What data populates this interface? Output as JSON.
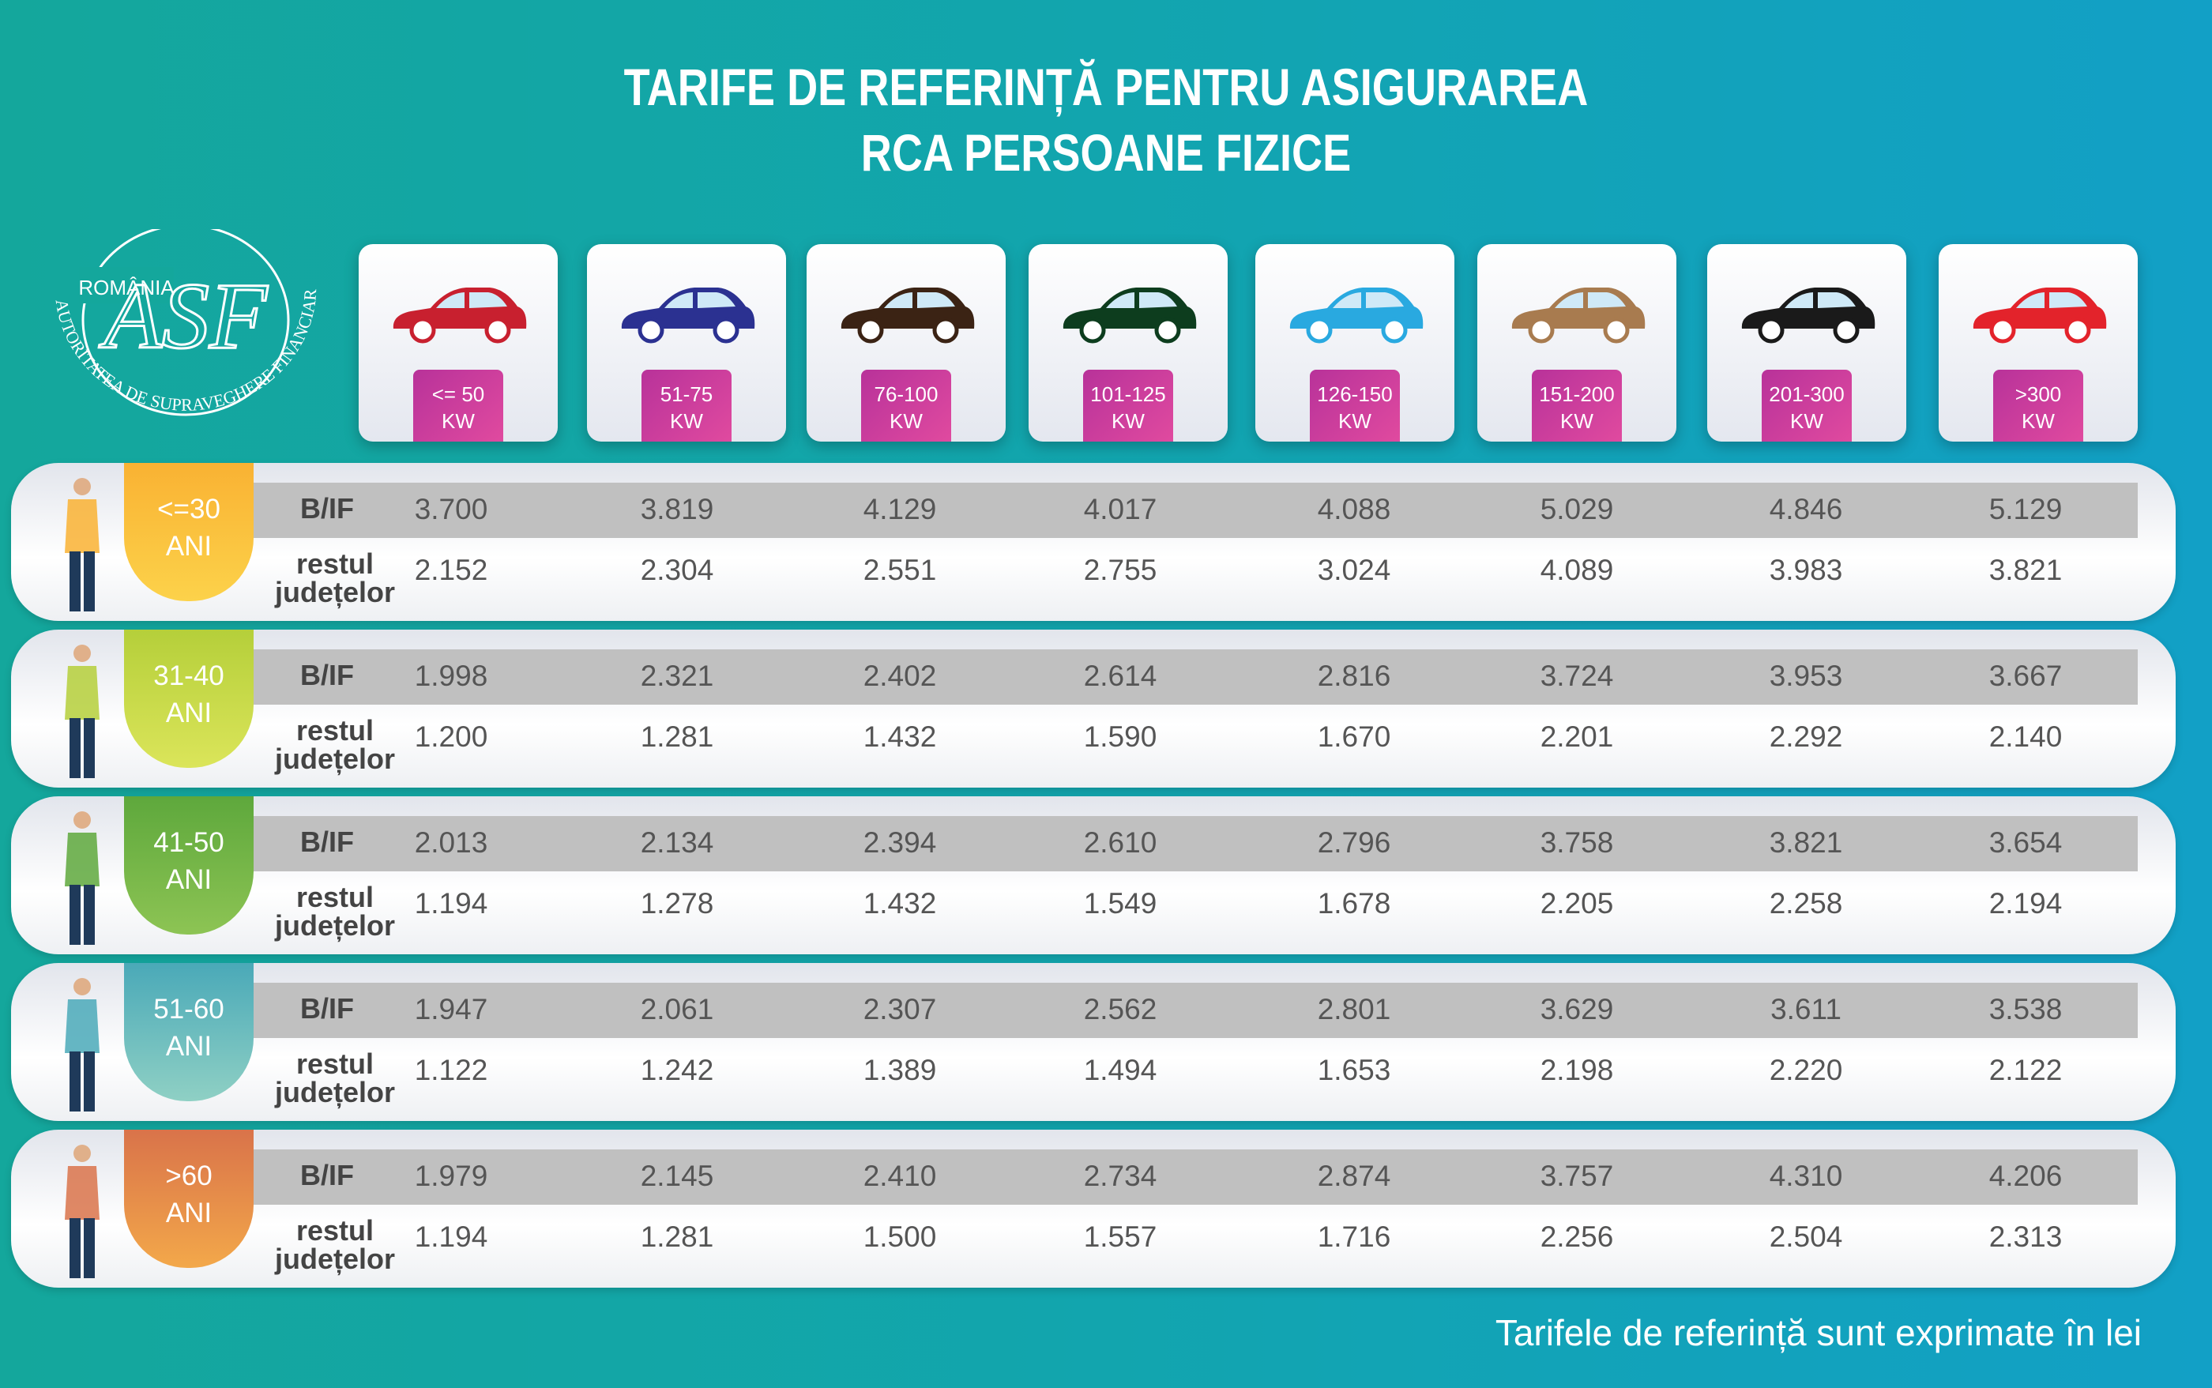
{
  "title": {
    "line1": "TARIFE DE REFERINȚĂ PENTRU ASIGURAREA",
    "line2": "RCA PERSOANE FIZICE"
  },
  "logo": {
    "text_top": "ROMÂNIA",
    "text_arc": "AUTORITATEA DE SUPRAVEGHERE FINANCIARĂ",
    "monogram": "ASF"
  },
  "columns": [
    {
      "range": "<= 50",
      "unit": "KW",
      "car_color": "#c8202f",
      "car_icon": "hatchback-small-icon"
    },
    {
      "range": "51-75",
      "unit": "KW",
      "car_color": "#2b3191",
      "car_icon": "hatchback-icon"
    },
    {
      "range": "76-100",
      "unit": "KW",
      "car_color": "#3b2314",
      "car_icon": "sedan-icon"
    },
    {
      "range": "101-125",
      "unit": "KW",
      "car_color": "#0d3d1e",
      "car_icon": "minivan-icon"
    },
    {
      "range": "126-150",
      "unit": "KW",
      "car_color": "#29a9e0",
      "car_icon": "sedan-icon"
    },
    {
      "range": "151-200",
      "unit": "KW",
      "car_color": "#a87b4f",
      "car_icon": "suv-icon"
    },
    {
      "range": "201-300",
      "unit": "KW",
      "car_color": "#1a1a1a",
      "car_icon": "convertible-icon"
    },
    {
      "range": ">300",
      "unit": "KW",
      "car_color": "#e3232b",
      "car_icon": "sports-car-icon"
    }
  ],
  "row_labels": {
    "bif": "B/IF",
    "rest_line1": "restul",
    "rest_line2": "județelor"
  },
  "rows": [
    {
      "age": "<=30",
      "unit": "ANI",
      "color": "#f9b233",
      "color2": "#fcd24a",
      "bif": [
        "3.700",
        "3.819",
        "4.129",
        "4.017",
        "4.088",
        "5.029",
        "4.846",
        "5.129"
      ],
      "rest": [
        "2.152",
        "2.304",
        "2.551",
        "2.755",
        "3.024",
        "4.089",
        "3.983",
        "3.821"
      ]
    },
    {
      "age": "31-40",
      "unit": "ANI",
      "color": "#b5cf3a",
      "color2": "#dbe55a",
      "bif": [
        "1.998",
        "2.321",
        "2.402",
        "2.614",
        "2.816",
        "3.724",
        "3.953",
        "3.667"
      ],
      "rest": [
        "1.200",
        "1.281",
        "1.432",
        "1.590",
        "1.670",
        "2.201",
        "2.292",
        "2.140"
      ]
    },
    {
      "age": "41-50",
      "unit": "ANI",
      "color": "#5ea83c",
      "color2": "#8dc454",
      "bif": [
        "2.013",
        "2.134",
        "2.394",
        "2.610",
        "2.796",
        "3.758",
        "3.821",
        "3.654"
      ],
      "rest": [
        "1.194",
        "1.278",
        "1.432",
        "1.549",
        "1.678",
        "2.205",
        "2.258",
        "2.194"
      ]
    },
    {
      "age": "51-60",
      "unit": "ANI",
      "color": "#4aa9b8",
      "color2": "#8fd0c4",
      "bif": [
        "1.947",
        "2.061",
        "2.307",
        "2.562",
        "2.801",
        "3.629",
        "3.611",
        "3.538"
      ],
      "rest": [
        "1.122",
        "1.242",
        "1.389",
        "1.494",
        "1.653",
        "2.198",
        "2.220",
        "2.122"
      ]
    },
    {
      "age": ">60",
      "unit": "ANI",
      "color": "#d9734a",
      "color2": "#f3a84a",
      "bif": [
        "1.979",
        "2.145",
        "2.410",
        "2.734",
        "2.874",
        "3.757",
        "4.310",
        "4.206"
      ],
      "rest": [
        "1.194",
        "1.281",
        "1.500",
        "1.557",
        "1.716",
        "2.256",
        "2.504",
        "2.313"
      ]
    }
  ],
  "footer": "Tarifele de referință sunt exprimate în lei"
}
